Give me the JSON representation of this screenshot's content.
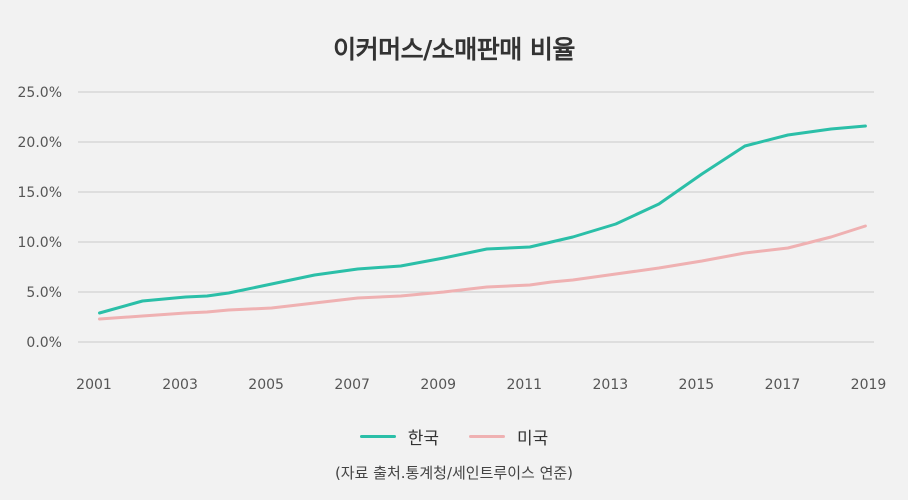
{
  "chart_data": {
    "type": "line",
    "title": "이커머스/소매판매 비율",
    "x": [
      2001.5,
      2002.5,
      2003.5,
      2004,
      2004.5,
      2005.5,
      2006.5,
      2007.5,
      2008.5,
      2009.5,
      2010.5,
      2011.5,
      2012,
      2012.5,
      2013.5,
      2014.5,
      2015.5,
      2016.5,
      2017.5,
      2018.5,
      2019.3
    ],
    "series": [
      {
        "name": "한국",
        "color": "#2bbfa8",
        "values": [
          2.9,
          4.1,
          4.5,
          4.6,
          4.9,
          5.8,
          6.7,
          7.3,
          7.6,
          8.4,
          9.3,
          9.5,
          10.0,
          10.5,
          11.8,
          13.8,
          16.8,
          19.6,
          20.7,
          21.3,
          21.6
        ]
      },
      {
        "name": "미국",
        "color": "#efb1b2",
        "values": [
          2.3,
          2.6,
          2.9,
          3.0,
          3.2,
          3.4,
          3.9,
          4.4,
          4.6,
          5.0,
          5.5,
          5.7,
          6.0,
          6.2,
          6.8,
          7.4,
          8.1,
          8.9,
          9.4,
          10.5,
          11.6
        ]
      }
    ],
    "x_ticks": [
      "2001",
      "2003",
      "2005",
      "2007",
      "2009",
      "2011",
      "2013",
      "2015",
      "2017",
      "2019"
    ],
    "y_ticks": [
      "0.0%",
      "5.0%",
      "10.0%",
      "15.0%",
      "20.0%",
      "25.0%"
    ],
    "ylim": [
      0,
      25
    ],
    "xlim": [
      2001,
      2019.5
    ],
    "grid": true,
    "legend": "bottom-center",
    "source": "(자료 출처.통계청/세인트루이스 연준)"
  }
}
